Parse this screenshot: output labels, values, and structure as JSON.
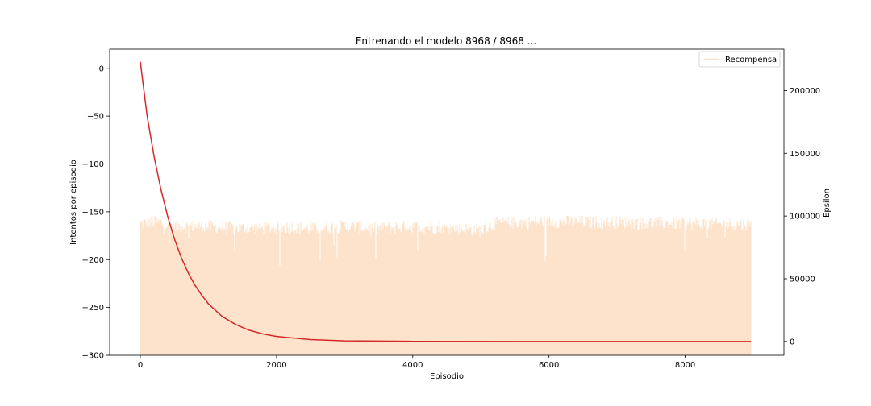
{
  "chart_data": {
    "type": "line",
    "title": "Entrenando el modelo 8968 / 8968 ...",
    "xlabel": "Episodio",
    "ylabel_left": "Intentos por episodio",
    "ylabel_right": "Epsilon",
    "xlim": [
      -450,
      9450
    ],
    "xticks": [
      0,
      2000,
      4000,
      6000,
      8000
    ],
    "ylim_left": [
      -300,
      20
    ],
    "yticks_left": [
      0,
      -50,
      -100,
      -150,
      -200,
      -250,
      -300
    ],
    "ylim_right": [
      -11000,
      233000
    ],
    "yticks_right": [
      0,
      50000,
      100000,
      150000,
      200000
    ],
    "grid": false,
    "legend": {
      "position": "top-right",
      "entries": [
        "Recompensa"
      ]
    },
    "series": [
      {
        "name": "Recompensa",
        "axis": "left",
        "color": "#fde3cc",
        "x_range": [
          0,
          8968
        ],
        "envelope": [
          {
            "x": 0,
            "top": -165
          },
          {
            "x": 250,
            "top": -163
          },
          {
            "x": 500,
            "top": -168
          },
          {
            "x": 1000,
            "top": -168
          },
          {
            "x": 1500,
            "top": -170
          },
          {
            "x": 2000,
            "top": -169
          },
          {
            "x": 2500,
            "top": -170
          },
          {
            "x": 3000,
            "top": -168
          },
          {
            "x": 3500,
            "top": -170
          },
          {
            "x": 4000,
            "top": -168
          },
          {
            "x": 4500,
            "top": -170
          },
          {
            "x": 5000,
            "top": -172
          },
          {
            "x": 5200,
            "top": -165
          },
          {
            "x": 6000,
            "top": -163
          },
          {
            "x": 7000,
            "top": -164
          },
          {
            "x": 8000,
            "top": -165
          },
          {
            "x": 8968,
            "top": -166
          }
        ],
        "floor": -300
      },
      {
        "name": "Epsilon",
        "axis": "right",
        "color": "#d62728",
        "points": [
          {
            "x": 0,
            "y": 223000
          },
          {
            "x": 100,
            "y": 180000
          },
          {
            "x": 200,
            "y": 148000
          },
          {
            "x": 300,
            "y": 122000
          },
          {
            "x": 400,
            "y": 100000
          },
          {
            "x": 500,
            "y": 82000
          },
          {
            "x": 600,
            "y": 67000
          },
          {
            "x": 700,
            "y": 55000
          },
          {
            "x": 800,
            "y": 45000
          },
          {
            "x": 900,
            "y": 37000
          },
          {
            "x": 1000,
            "y": 30000
          },
          {
            "x": 1200,
            "y": 20000
          },
          {
            "x": 1400,
            "y": 13500
          },
          {
            "x": 1600,
            "y": 9000
          },
          {
            "x": 1800,
            "y": 6000
          },
          {
            "x": 2000,
            "y": 4000
          },
          {
            "x": 2500,
            "y": 1500
          },
          {
            "x": 3000,
            "y": 500
          },
          {
            "x": 4000,
            "y": 100
          },
          {
            "x": 6000,
            "y": 0
          },
          {
            "x": 8968,
            "y": 0
          }
        ]
      }
    ]
  }
}
